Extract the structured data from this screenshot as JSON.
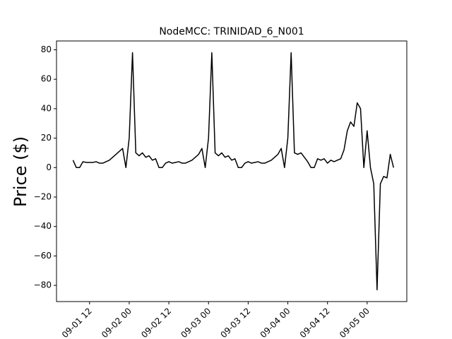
{
  "chart_data": {
    "type": "line",
    "title": "NodeMCC: TRINIDAD_6_N001",
    "y_label": "Price ($)",
    "x": [
      "09-01 07",
      "09-01 08",
      "09-01 09",
      "09-01 10",
      "09-01 11",
      "09-01 12",
      "09-01 13",
      "09-01 14",
      "09-01 15",
      "09-01 16",
      "09-01 17",
      "09-01 18",
      "09-01 19",
      "09-01 20",
      "09-01 21",
      "09-01 22",
      "09-01 23",
      "09-02 00",
      "09-02 01",
      "09-02 02",
      "09-02 03",
      "09-02 04",
      "09-02 05",
      "09-02 06",
      "09-02 07",
      "09-02 08",
      "09-02 09",
      "09-02 10",
      "09-02 11",
      "09-02 12",
      "09-02 13",
      "09-02 14",
      "09-02 15",
      "09-02 16",
      "09-02 17",
      "09-02 18",
      "09-02 19",
      "09-02 20",
      "09-02 21",
      "09-02 22",
      "09-02 23",
      "09-03 00",
      "09-03 01",
      "09-03 02",
      "09-03 03",
      "09-03 04",
      "09-03 05",
      "09-03 06",
      "09-03 07",
      "09-03 08",
      "09-03 09",
      "09-03 10",
      "09-03 11",
      "09-03 12",
      "09-03 13",
      "09-03 14",
      "09-03 15",
      "09-03 16",
      "09-03 17",
      "09-03 18",
      "09-03 19",
      "09-03 20",
      "09-03 21",
      "09-03 22",
      "09-03 23",
      "09-04 00",
      "09-04 01",
      "09-04 02",
      "09-04 03",
      "09-04 04",
      "09-04 05",
      "09-04 06",
      "09-04 07",
      "09-04 08",
      "09-04 09",
      "09-04 10",
      "09-04 11",
      "09-04 12",
      "09-04 13",
      "09-04 14",
      "09-04 15",
      "09-04 16",
      "09-04 17",
      "09-04 18",
      "09-04 19",
      "09-04 20",
      "09-04 21",
      "09-04 22",
      "09-04 23",
      "09-05 00",
      "09-05 01",
      "09-05 02",
      "09-05 03",
      "09-05 04",
      "09-05 05",
      "09-05 06",
      "09-05 07",
      "09-05 08"
    ],
    "series": [
      {
        "color": "#000000",
        "values": [
          5,
          0,
          0,
          4,
          3.5,
          3.5,
          3.5,
          4,
          3,
          3,
          4,
          5,
          7,
          9,
          11,
          13,
          0,
          20,
          78,
          10,
          8,
          10,
          7,
          8,
          5,
          6,
          0,
          0,
          3,
          4,
          3,
          3.5,
          4,
          3,
          3,
          4,
          5,
          7,
          9,
          13,
          0,
          20,
          78,
          10,
          8,
          10,
          7,
          8,
          5,
          6,
          0,
          0,
          3,
          4,
          3,
          3.5,
          4,
          3,
          3,
          4,
          5,
          7,
          9,
          13,
          0,
          20,
          78,
          10,
          9,
          10,
          7,
          4,
          0,
          0,
          6,
          5,
          6,
          3,
          5,
          4,
          5,
          6,
          12,
          25,
          31,
          28,
          44,
          40,
          0,
          25,
          0,
          -11,
          -83,
          -11,
          -6,
          -7,
          9,
          0
        ]
      }
    ],
    "xlim": [
      "09-01 02",
      "09-05 12"
    ],
    "xticks": [
      "09-01 12",
      "09-02 00",
      "09-02 12",
      "09-03 00",
      "09-03 12",
      "09-04 00",
      "09-04 12",
      "09-05 00"
    ],
    "ylim": [
      -91,
      86
    ],
    "yticks": [
      {
        "value": -80,
        "label": "−80"
      },
      {
        "value": -60,
        "label": "−60"
      },
      {
        "value": -40,
        "label": "−40"
      },
      {
        "value": -20,
        "label": "−20"
      },
      0,
      20,
      40,
      60,
      80
    ]
  }
}
